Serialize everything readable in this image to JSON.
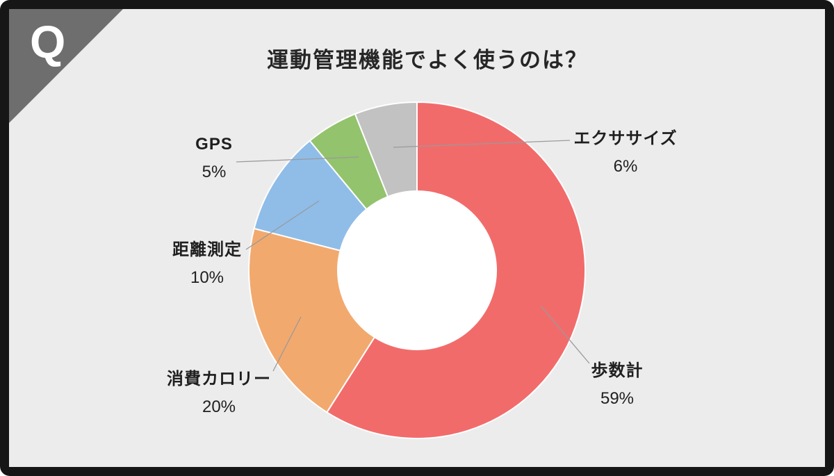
{
  "frame": {
    "logo_letter": "Q"
  },
  "title": "運動管理機能でよく使うのは？",
  "chart_data": {
    "type": "pie",
    "subtype": "donut",
    "title": "運動管理機能でよく使うのは？",
    "categories": [
      "歩数計",
      "消費カロリー",
      "距離測定",
      "GPS",
      "エクササイズ"
    ],
    "values": [
      59,
      20,
      10,
      5,
      6
    ],
    "unit": "%",
    "value_labels": [
      "59%",
      "20%",
      "10%",
      "5%",
      "6%"
    ],
    "colors": [
      "#f26b6b",
      "#f2a96e",
      "#8fbde8",
      "#93c36d",
      "#c2c2c2"
    ],
    "start_angle_deg": 0,
    "direction": "clockwise",
    "inner_radius_ratio": 0.47,
    "hole_color": "#ffffff",
    "background": "#ececec",
    "legend_position": "callout-labels",
    "label_line_color": "#9a9a9a"
  }
}
